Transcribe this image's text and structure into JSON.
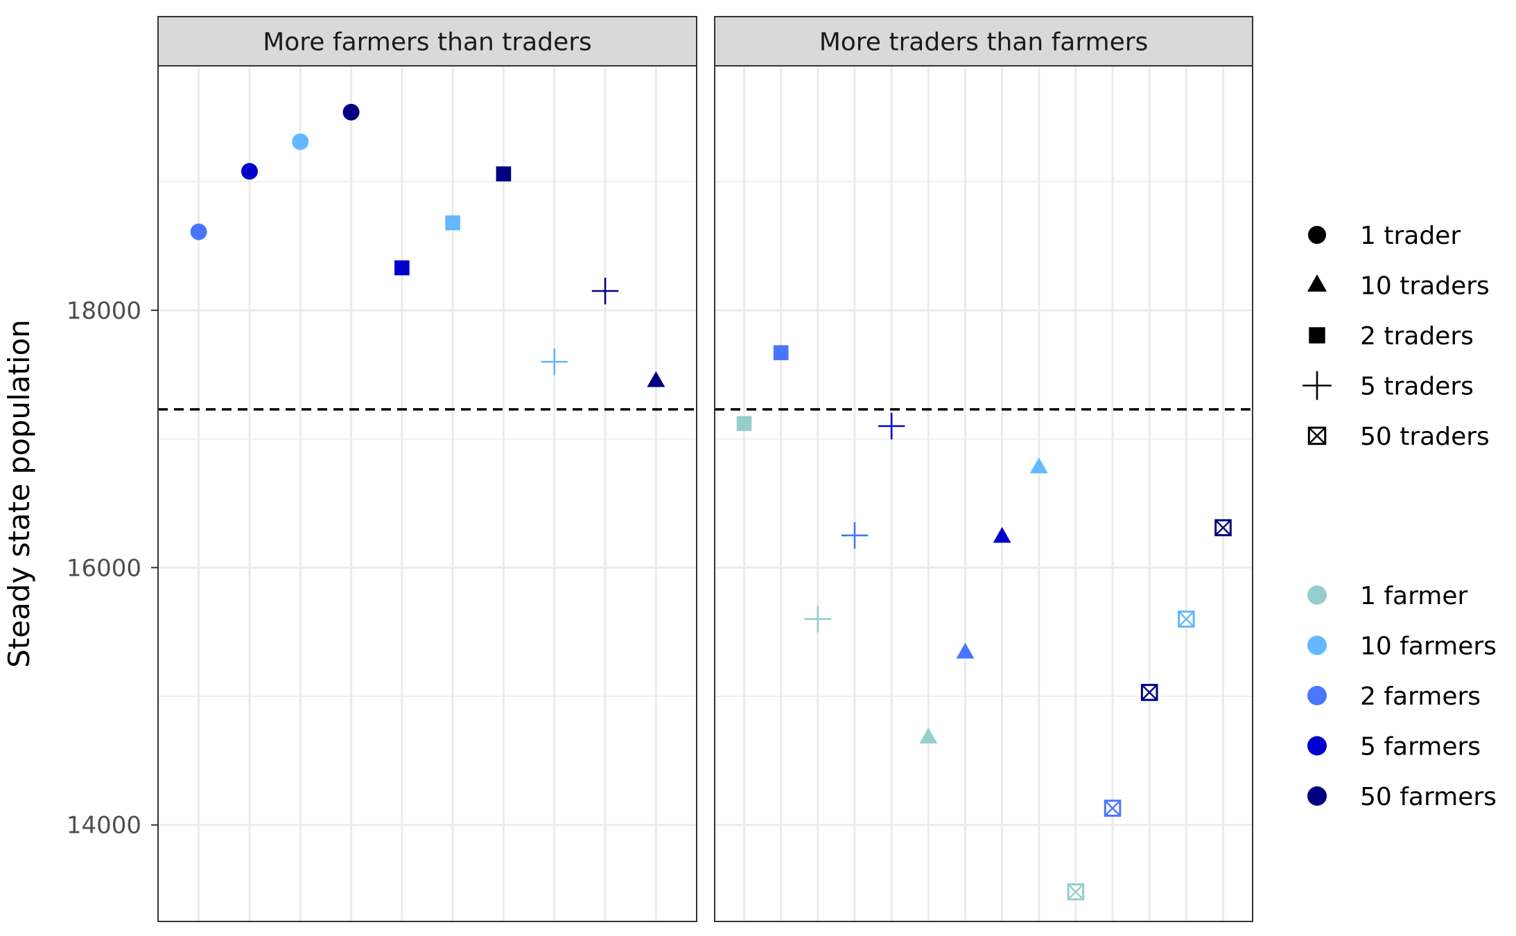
{
  "chart_data": {
    "type": "scatter",
    "ylabel": "Steady state population",
    "xlabel": "",
    "ylim": [
      13250,
      19900
    ],
    "y_ticks": [
      14000,
      16000,
      18000
    ],
    "reference_line": {
      "y": 17230,
      "style": "dashed"
    },
    "grid": true,
    "legend_position": "right",
    "shape_legend": [
      {
        "label": "1 trader",
        "shape": "circle"
      },
      {
        "label": "10 traders",
        "shape": "triangle"
      },
      {
        "label": "2 traders",
        "shape": "square"
      },
      {
        "label": "5 traders",
        "shape": "plus"
      },
      {
        "label": "50 traders",
        "shape": "boxcross"
      }
    ],
    "color_legend": [
      {
        "label": "1 farmer",
        "color": "#96CDCD"
      },
      {
        "label": "10 farmers",
        "color": "#63B8FF"
      },
      {
        "label": "2 farmers",
        "color": "#4876FF"
      },
      {
        "label": "5 farmers",
        "color": "#0000CD"
      },
      {
        "label": "50 farmers",
        "color": "#000080"
      }
    ],
    "panels": [
      {
        "title": "More farmers than traders",
        "n_x": 10,
        "points": [
          {
            "x": 1,
            "y": 18610,
            "shape": "circle",
            "color": "#4876FF"
          },
          {
            "x": 2,
            "y": 19080,
            "shape": "circle",
            "color": "#0000CD"
          },
          {
            "x": 3,
            "y": 19310,
            "shape": "circle",
            "color": "#63B8FF"
          },
          {
            "x": 4,
            "y": 19540,
            "shape": "circle",
            "color": "#000080"
          },
          {
            "x": 5,
            "y": 18330,
            "shape": "square",
            "color": "#0000CD"
          },
          {
            "x": 6,
            "y": 18680,
            "shape": "square",
            "color": "#63B8FF"
          },
          {
            "x": 7,
            "y": 19060,
            "shape": "square",
            "color": "#000080"
          },
          {
            "x": 8,
            "y": 17600,
            "shape": "plus",
            "color": "#63B8FF"
          },
          {
            "x": 9,
            "y": 18150,
            "shape": "plus",
            "color": "#000080"
          },
          {
            "x": 10,
            "y": 17450,
            "shape": "triangle",
            "color": "#000080"
          }
        ]
      },
      {
        "title": "More traders than farmers",
        "n_x": 14,
        "points": [
          {
            "x": 1,
            "y": 17120,
            "shape": "square",
            "color": "#96CDCD"
          },
          {
            "x": 2,
            "y": 17670,
            "shape": "square",
            "color": "#4876FF"
          },
          {
            "x": 3,
            "y": 15600,
            "shape": "plus",
            "color": "#96CDCD"
          },
          {
            "x": 4,
            "y": 16250,
            "shape": "plus",
            "color": "#4876FF"
          },
          {
            "x": 5,
            "y": 17100,
            "shape": "plus",
            "color": "#0000CD"
          },
          {
            "x": 6,
            "y": 14680,
            "shape": "triangle",
            "color": "#96CDCD"
          },
          {
            "x": 7,
            "y": 15340,
            "shape": "triangle",
            "color": "#4876FF"
          },
          {
            "x": 8,
            "y": 16240,
            "shape": "triangle",
            "color": "#0000CD"
          },
          {
            "x": 9,
            "y": 16780,
            "shape": "triangle",
            "color": "#63B8FF"
          },
          {
            "x": 10,
            "y": 13480,
            "shape": "boxcross",
            "color": "#96CDCD"
          },
          {
            "x": 11,
            "y": 14130,
            "shape": "boxcross",
            "color": "#4876FF"
          },
          {
            "x": 12,
            "y": 15030,
            "shape": "boxcross",
            "color": "#000080"
          },
          {
            "x": 13,
            "y": 15600,
            "shape": "boxcross",
            "color": "#63B8FF"
          },
          {
            "x": 14,
            "y": 16310,
            "shape": "boxcross",
            "color": "#000080"
          }
        ]
      }
    ]
  }
}
